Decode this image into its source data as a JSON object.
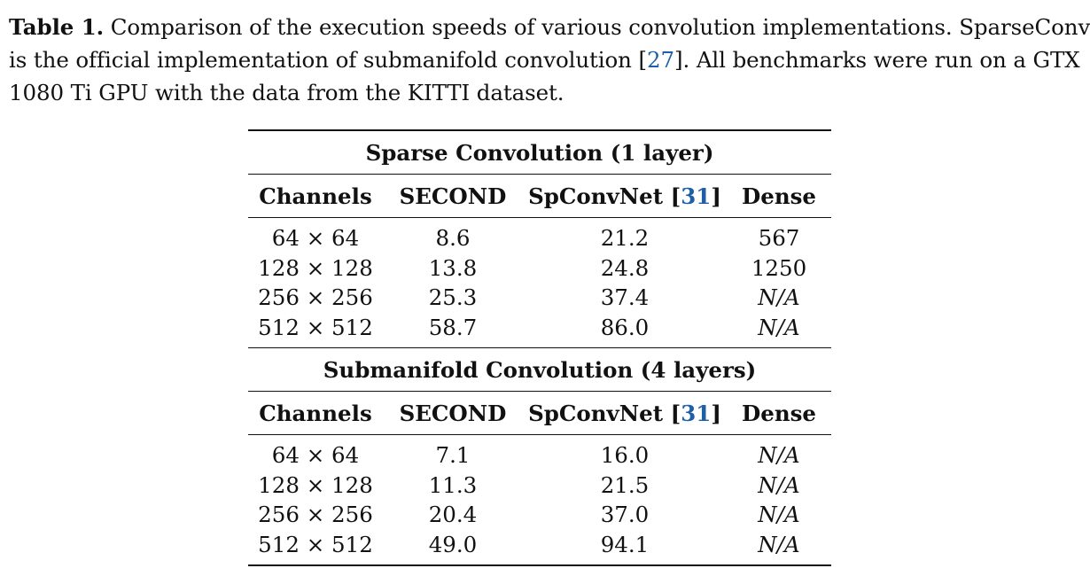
{
  "caption": {
    "label": "Table 1.",
    "line1_text": " Comparison of the execution speeds of various convolution implementations. SparseConvNet",
    "line2_pre": "is the official implementation of submanifold convolution [",
    "line2_cite": "27",
    "line2_post": "]. All benchmarks were run on a GTX",
    "line3": "1080 Ti GPU with the data from the KITTI dataset."
  },
  "table": {
    "sections": [
      {
        "title": "Sparse Convolution (1 layer)",
        "headers": {
          "channels": "Channels",
          "second": "SECOND",
          "spconvnet": "SpConvNet [",
          "spconvnet_cite": "31",
          "spconvnet_close": "]",
          "dense": "Dense"
        },
        "rows": [
          {
            "channels": "64 × 64",
            "second": "8.6",
            "spconvnet": "21.2",
            "dense": "567"
          },
          {
            "channels": "128 × 128",
            "second": "13.8",
            "spconvnet": "24.8",
            "dense": "1250"
          },
          {
            "channels": "256 × 256",
            "second": "25.3",
            "spconvnet": "37.4",
            "dense": "N/A"
          },
          {
            "channels": "512 × 512",
            "second": "58.7",
            "spconvnet": "86.0",
            "dense": "N/A"
          }
        ]
      },
      {
        "title": "Submanifold Convolution (4 layers)",
        "headers": {
          "channels": "Channels",
          "second": "SECOND",
          "spconvnet": "SpConvNet [",
          "spconvnet_cite": "31",
          "spconvnet_close": "]",
          "dense": "Dense"
        },
        "rows": [
          {
            "channels": "64 × 64",
            "second": "7.1",
            "spconvnet": "16.0",
            "dense": "N/A"
          },
          {
            "channels": "128 × 128",
            "second": "11.3",
            "spconvnet": "21.5",
            "dense": "N/A"
          },
          {
            "channels": "256 × 256",
            "second": "20.4",
            "spconvnet": "37.0",
            "dense": "N/A"
          },
          {
            "channels": "512 × 512",
            "second": "49.0",
            "spconvnet": "94.1",
            "dense": "N/A"
          }
        ]
      }
    ]
  }
}
